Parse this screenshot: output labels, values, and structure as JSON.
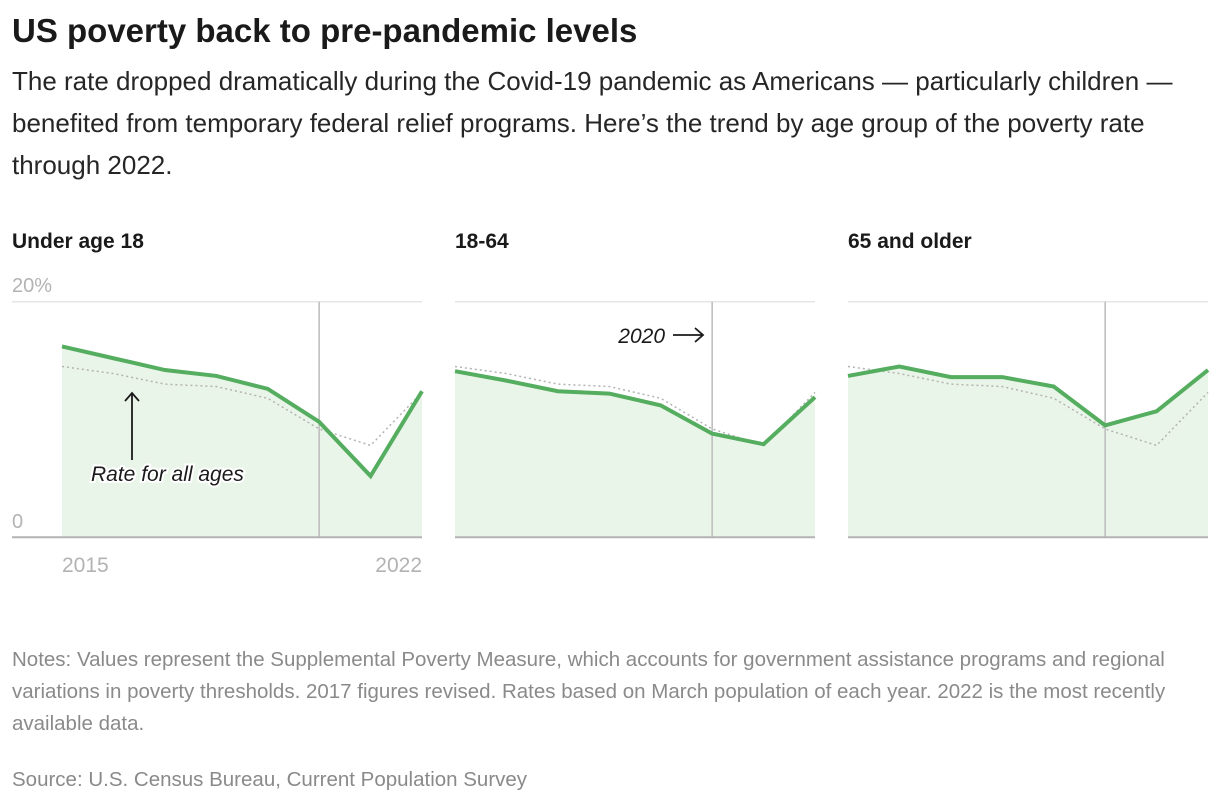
{
  "title": "US poverty back to pre-pandemic levels",
  "subtitle": "The rate dropped dramatically during the Covid-19 pandemic as Americans — particularly children — benefited from temporary federal relief programs. Here’s the trend by age group of the poverty rate through 2022.",
  "notes": "Notes: Values represent the Supplemental Poverty Measure, which accounts for government assistance programs and regional variations in poverty thresholds. 2017 figures revised. Rates based on March population of each year. 2022 is the most recently available data.",
  "source": "Source: U.S. Census Bureau, Current Population Survey",
  "colors": {
    "line": "#55ad5f",
    "fill": "#eaf5e9",
    "all_ages": "#b3b3b3",
    "marker": "#bbbbbb"
  },
  "chart_data": {
    "type": "line",
    "x": [
      2015,
      2016,
      2017,
      2018,
      2019,
      2020,
      2021,
      2022
    ],
    "ylim": [
      0,
      20
    ],
    "y_ticks": [
      "0",
      "20%"
    ],
    "x_ticks": [
      "2015",
      "2022"
    ],
    "reference_series": {
      "label": "Rate for all ages",
      "values": [
        14.5,
        13.9,
        13.0,
        12.8,
        11.8,
        9.2,
        7.8,
        12.3
      ]
    },
    "annotations": {
      "all_ages": "Rate for all ages",
      "marker_year": 2020,
      "marker_label": "2020"
    },
    "panels": [
      {
        "title": "Under age 18",
        "values": [
          16.2,
          15.2,
          14.2,
          13.7,
          12.6,
          9.8,
          5.2,
          12.4
        ]
      },
      {
        "title": "18-64",
        "values": [
          14.1,
          13.3,
          12.4,
          12.2,
          11.2,
          8.8,
          7.9,
          11.9
        ]
      },
      {
        "title": "65 and older",
        "values": [
          13.7,
          14.5,
          13.6,
          13.6,
          12.8,
          9.5,
          10.7,
          14.2
        ]
      }
    ]
  }
}
